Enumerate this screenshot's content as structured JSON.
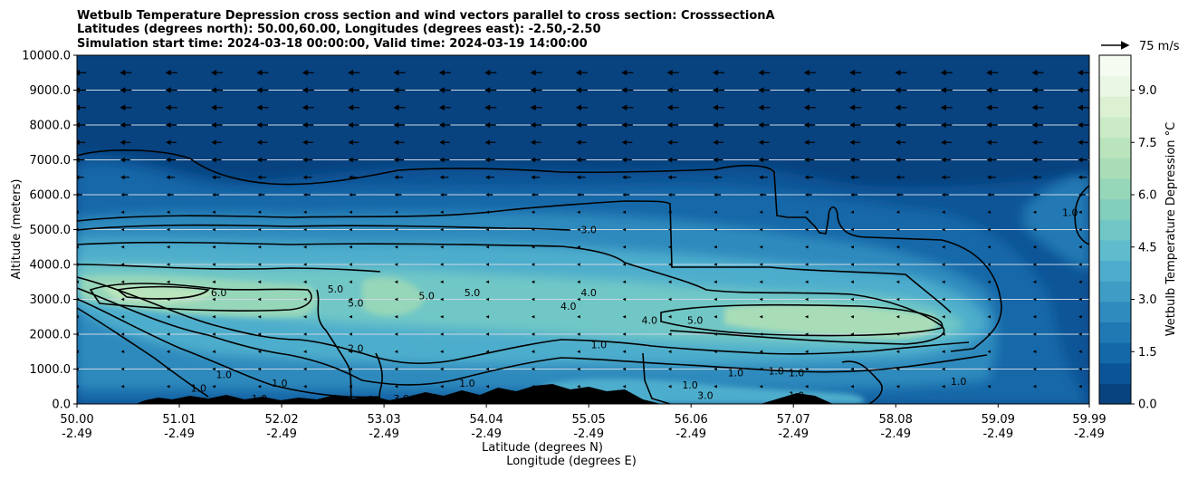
{
  "chart_data": {
    "type": "contour",
    "title": [
      "Wetbulb Temperature Depression cross section and wind vectors parallel to cross section: CrosssectionA",
      "Latitudes (degrees north): 50.00,60.00, Longitudes (degrees east): -2.50,-2.50",
      "Simulation start time: 2024-03-18 00:00:00, Valid time: 2024-03-19 14:00:00"
    ],
    "xlabel_lat": "Latitude (degrees N)",
    "xlabel_lon": "Longitude (degrees E)",
    "ylabel": "Altitude (meters)",
    "xlim": [
      50.0,
      59.99
    ],
    "ylim": [
      0,
      10000
    ],
    "y_ticks": [
      "0.0",
      "1000.0",
      "2000.0",
      "3000.0",
      "4000.0",
      "5000.0",
      "6000.0",
      "7000.0",
      "8000.0",
      "9000.0",
      "10000.0"
    ],
    "y_tick_values": [
      0,
      1000,
      2000,
      3000,
      4000,
      5000,
      6000,
      7000,
      8000,
      9000,
      10000
    ],
    "x_ticks": [
      {
        "lat": "50.00",
        "lon": "-2.49",
        "value": 50.0
      },
      {
        "lat": "51.01",
        "lon": "-2.49",
        "value": 51.01
      },
      {
        "lat": "52.02",
        "lon": "-2.49",
        "value": 52.02
      },
      {
        "lat": "53.03",
        "lon": "-2.49",
        "value": 53.03
      },
      {
        "lat": "54.04",
        "lon": "-2.49",
        "value": 54.04
      },
      {
        "lat": "55.05",
        "lon": "-2.49",
        "value": 55.05
      },
      {
        "lat": "56.06",
        "lon": "-2.49",
        "value": 56.06
      },
      {
        "lat": "57.07",
        "lon": "-2.49",
        "value": 57.07
      },
      {
        "lat": "58.08",
        "lon": "-2.49",
        "value": 58.08
      },
      {
        "lat": "59.09",
        "lon": "-2.49",
        "value": 59.09
      },
      {
        "lat": "59.99",
        "lon": "-2.49",
        "value": 59.99
      }
    ],
    "grid": "horizontal",
    "colorbar": {
      "label": "Wetbulb Temperature Depression °C",
      "min": 0.0,
      "max": 10.0,
      "tick_labels": [
        "0.0",
        "1.5",
        "3.0",
        "4.5",
        "6.0",
        "7.5",
        "9.0"
      ],
      "tick_values": [
        0,
        1.5,
        3,
        4.5,
        6,
        7.5,
        9
      ],
      "colormap": "GnBu_r",
      "colors": [
        "#08427f",
        "#0a5597",
        "#1368a8",
        "#2079b3",
        "#2f8abd",
        "#3e9cc5",
        "#4eadcc",
        "#5fbccd",
        "#71c7c6",
        "#83cfbe",
        "#96d6b9",
        "#a9ddb7",
        "#bae4bc",
        "#cbebc6",
        "#dbf1d2",
        "#eaf7e4",
        "#f5fbf0"
      ]
    },
    "quiver_key": {
      "label": "75 m/s",
      "value": 75
    },
    "wind": {
      "direction": "left",
      "rows_altitude": [
        9500,
        9000,
        8500,
        8000,
        7500,
        7000,
        6500,
        6000,
        5500,
        5000,
        4500,
        4000,
        3500,
        3000,
        2500,
        2000,
        1500,
        1000,
        500
      ],
      "row_scale": [
        1.0,
        1.0,
        1.0,
        0.95,
        0.9,
        0.85,
        0.75,
        0.6,
        0.5,
        0.4,
        0.3,
        0.3,
        0.3,
        0.35,
        0.4,
        0.45,
        0.5,
        0.5,
        0.5
      ],
      "columns_latitude": [
        50.0,
        50.45,
        50.9,
        51.35,
        51.8,
        52.25,
        52.7,
        53.15,
        53.6,
        54.05,
        54.5,
        54.95,
        55.4,
        55.85,
        56.3,
        56.75,
        57.2,
        57.65,
        58.1,
        58.55,
        59.0,
        59.45,
        59.9
      ]
    },
    "contour_levels": [
      1.0,
      2.0,
      3.0,
      4.0,
      5.0,
      6.0
    ],
    "contour_labels": [
      {
        "text": "3.0",
        "lat": 55.05,
        "alt": 5000
      },
      {
        "text": "4.0",
        "lat": 55.05,
        "alt": 3200
      },
      {
        "text": "4.0",
        "lat": 54.85,
        "alt": 2800
      },
      {
        "text": "4.0",
        "lat": 55.65,
        "alt": 2400
      },
      {
        "text": "5.0",
        "lat": 52.55,
        "alt": 3300
      },
      {
        "text": "5.0",
        "lat": 52.75,
        "alt": 2900
      },
      {
        "text": "5.0",
        "lat": 53.45,
        "alt": 3100
      },
      {
        "text": "5.0",
        "lat": 53.9,
        "alt": 3200
      },
      {
        "text": "5.0",
        "lat": 56.1,
        "alt": 2400
      },
      {
        "text": "6.0",
        "lat": 51.4,
        "alt": 3200
      },
      {
        "text": "1.0",
        "lat": 55.15,
        "alt": 1700
      },
      {
        "text": "2.0",
        "lat": 52.75,
        "alt": 1600
      },
      {
        "text": "1.0",
        "lat": 51.2,
        "alt": 450
      },
      {
        "text": "1.0",
        "lat": 51.45,
        "alt": 850
      },
      {
        "text": "1.0",
        "lat": 51.8,
        "alt": 150
      },
      {
        "text": "1.0",
        "lat": 52.0,
        "alt": 600
      },
      {
        "text": "1.0",
        "lat": 53.85,
        "alt": 600
      },
      {
        "text": "3.0",
        "lat": 53.2,
        "alt": 150
      },
      {
        "text": "1.0",
        "lat": 56.5,
        "alt": 900
      },
      {
        "text": "1.0",
        "lat": 56.9,
        "alt": 950
      },
      {
        "text": "1.0",
        "lat": 57.1,
        "alt": 900
      },
      {
        "text": "1.0",
        "lat": 56.05,
        "alt": 550
      },
      {
        "text": "3.0",
        "lat": 56.2,
        "alt": 250
      },
      {
        "text": "1.0",
        "lat": 57.1,
        "alt": 250
      },
      {
        "text": "1.0",
        "lat": 58.7,
        "alt": 650
      },
      {
        "text": "1.0",
        "lat": 59.8,
        "alt": 5500
      }
    ]
  }
}
